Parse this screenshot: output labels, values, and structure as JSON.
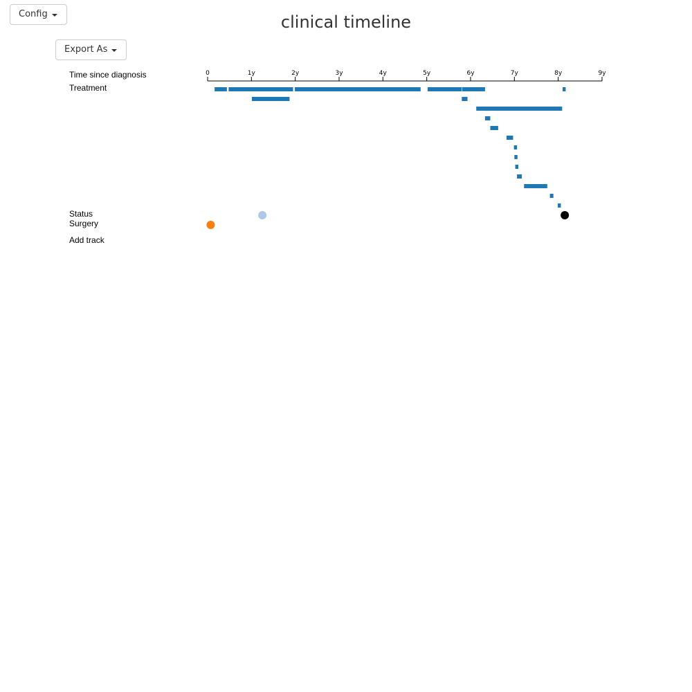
{
  "toolbar": {
    "config_label": "Config",
    "export_label": "Export As"
  },
  "chart_data": {
    "type": "timeline",
    "title": "clinical timeline",
    "axis": {
      "label": "Time since diagnosis",
      "unit": "years",
      "range": [
        0,
        9
      ],
      "ticks": [
        {
          "value": 0,
          "label": "0"
        },
        {
          "value": 1,
          "label": "1y"
        },
        {
          "value": 2,
          "label": "2y"
        },
        {
          "value": 3,
          "label": "3y"
        },
        {
          "value": 4,
          "label": "4y"
        },
        {
          "value": 5,
          "label": "5y"
        },
        {
          "value": 6,
          "label": "6y"
        },
        {
          "value": 7,
          "label": "7y"
        },
        {
          "value": 8,
          "label": "8y"
        },
        {
          "value": 9,
          "label": "9y"
        }
      ]
    },
    "tracks": [
      {
        "label": "Treatment",
        "color": "#1f77b4",
        "rows": [
          [
            [
              0.16,
              0.44
            ],
            [
              0.48,
              1.95
            ],
            [
              1.99,
              4.86
            ],
            [
              5.02,
              5.8
            ],
            [
              5.81,
              6.33
            ],
            [
              8.1,
              8.17
            ]
          ],
          [
            [
              1.01,
              1.87
            ],
            [
              5.8,
              5.93
            ]
          ],
          [
            [
              6.13,
              8.09
            ]
          ],
          [
            [
              6.33,
              6.45
            ]
          ],
          [
            [
              6.45,
              6.63
            ]
          ],
          [
            [
              6.82,
              6.97
            ]
          ],
          [
            [
              6.99,
              7.06
            ]
          ],
          [
            [
              7.0,
              7.07
            ]
          ],
          [
            [
              7.02,
              7.09
            ]
          ],
          [
            [
              7.06,
              7.17
            ]
          ],
          [
            [
              7.22,
              7.75
            ]
          ],
          [
            [
              7.81,
              7.89
            ]
          ],
          [
            [
              7.99,
              8.06
            ]
          ]
        ]
      },
      {
        "label": "Status",
        "points": [
          {
            "t": 1.25,
            "color": "#aec7e8"
          },
          {
            "t": 8.15,
            "color": "#000000"
          }
        ]
      },
      {
        "label": "Surgery",
        "points": [
          {
            "t": 0.07,
            "color": "#ff7f0e"
          }
        ]
      }
    ],
    "add_track_label": "Add track"
  }
}
